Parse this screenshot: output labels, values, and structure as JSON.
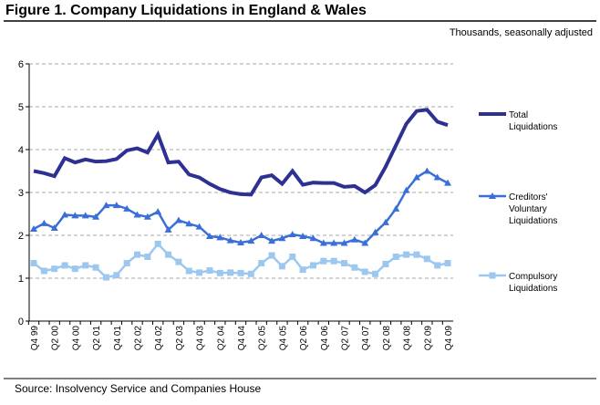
{
  "chart_data": {
    "type": "line",
    "title": "Figure 1. Company Liquidations in England & Wales",
    "subtitle": "Thousands, seasonally adjusted",
    "source": "Source: Insolvency Service and Companies House",
    "categories": [
      "Q4 99",
      null,
      "Q2 00",
      null,
      "Q4 00",
      null,
      "Q2 01",
      null,
      "Q4 01",
      null,
      "Q2 02",
      null,
      "Q4 02",
      null,
      "Q2 03",
      null,
      "Q4 03",
      null,
      "Q2 04",
      null,
      "Q4 04",
      null,
      "Q2 05",
      null,
      "Q4 05",
      null,
      "Q2 06",
      null,
      "Q4 06",
      null,
      "Q2 07",
      null,
      "Q4 07",
      null,
      "Q2 08",
      null,
      "Q4 08",
      null,
      "Q2 09",
      null,
      "Q4 09"
    ],
    "ylim": [
      0,
      6
    ],
    "yticks": [
      0,
      1,
      2,
      3,
      4,
      5,
      6
    ],
    "grid": true,
    "series": [
      {
        "name": "Total Liquidations",
        "color": "#2e3192",
        "marker": "none",
        "values": [
          3.5,
          3.45,
          3.38,
          3.8,
          3.7,
          3.77,
          3.72,
          3.73,
          3.78,
          3.98,
          4.03,
          3.93,
          4.35,
          3.7,
          3.72,
          3.42,
          3.35,
          3.2,
          3.08,
          3.0,
          2.96,
          2.95,
          3.35,
          3.4,
          3.2,
          3.5,
          3.18,
          3.23,
          3.22,
          3.22,
          3.13,
          3.15,
          3.0,
          3.17,
          3.6,
          4.1,
          4.6,
          4.9,
          4.93,
          4.65,
          4.57
        ]
      },
      {
        "name": "Creditors' Voluntary Liquidations",
        "color": "#3a6fd8",
        "marker": "triangle",
        "values": [
          2.15,
          2.28,
          2.17,
          2.48,
          2.46,
          2.46,
          2.43,
          2.7,
          2.7,
          2.62,
          2.48,
          2.43,
          2.55,
          2.13,
          2.35,
          2.27,
          2.2,
          1.98,
          1.95,
          1.88,
          1.83,
          1.87,
          2.0,
          1.87,
          1.93,
          2.02,
          1.98,
          1.93,
          1.82,
          1.82,
          1.82,
          1.9,
          1.82,
          2.07,
          2.3,
          2.62,
          3.05,
          3.35,
          3.5,
          3.35,
          3.22
        ]
      },
      {
        "name": "Compulsory Liquidations",
        "color": "#9cc8f0",
        "marker": "square",
        "values": [
          1.35,
          1.17,
          1.22,
          1.3,
          1.22,
          1.3,
          1.25,
          1.02,
          1.07,
          1.35,
          1.55,
          1.5,
          1.8,
          1.55,
          1.38,
          1.17,
          1.13,
          1.18,
          1.12,
          1.13,
          1.12,
          1.1,
          1.35,
          1.53,
          1.28,
          1.5,
          1.2,
          1.3,
          1.4,
          1.4,
          1.35,
          1.25,
          1.15,
          1.1,
          1.33,
          1.5,
          1.55,
          1.55,
          1.45,
          1.3,
          1.35
        ]
      }
    ]
  }
}
